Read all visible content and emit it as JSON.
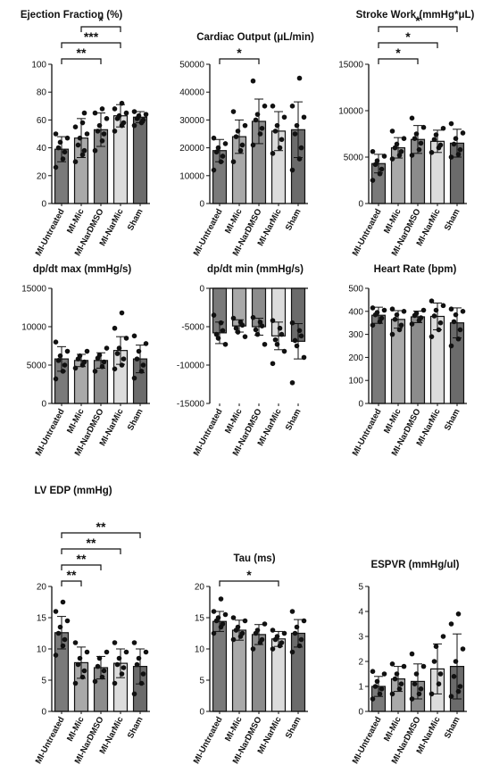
{
  "colors": {
    "MI-Untreated": "#7a7a7a",
    "MI-Mic": "#a9a9a9",
    "MI-NarDMSO": "#8c8c8c",
    "MI-NarMic": "#dcdcdc",
    "Sham": "#6b6b6b",
    "axis": "#111111",
    "point": "#111111"
  },
  "chart_data": [
    {
      "type": "bar",
      "title": "Ejection Fraction (%)",
      "categories": [
        "MI-Untreated",
        "MI-Mic",
        "MI-NarDMSO",
        "MI-NarMic",
        "Sham"
      ],
      "values": [
        39,
        47,
        53,
        63,
        62
      ],
      "errors": [
        9,
        14,
        12,
        8,
        4
      ],
      "points": [
        [
          26,
          32,
          37,
          40,
          44,
          47,
          50
        ],
        [
          30,
          35,
          38,
          42,
          47,
          50,
          55,
          58,
          65
        ],
        [
          38,
          45,
          50,
          52,
          56,
          61,
          65,
          68
        ],
        [
          52,
          56,
          58,
          61,
          63,
          65,
          68,
          72
        ],
        [
          56,
          58,
          60,
          61,
          63,
          64,
          66
        ]
      ],
      "ylim": [
        0,
        100
      ],
      "yticks": [
        0,
        20,
        40,
        60,
        80,
        100
      ],
      "ytick_labels": [
        "0",
        "20",
        "40",
        "60",
        "80",
        "100"
      ],
      "significance": [
        {
          "from": 0,
          "to": 2,
          "label": "**"
        },
        {
          "from": 0,
          "to": 3,
          "label": "***"
        },
        {
          "from": 1,
          "to": 3,
          "label": "*"
        }
      ]
    },
    {
      "type": "bar",
      "title": "Cardiac Output (μL/min)",
      "categories": [
        "MI-Untreated",
        "MI-Mic",
        "MI-NarDMSO",
        "MI-NarMic",
        "Sham"
      ],
      "values": [
        19000,
        24000,
        29500,
        26000,
        26500
      ],
      "errors": [
        4000,
        6000,
        8000,
        7000,
        10000
      ],
      "points": [
        [
          12000,
          15000,
          17000,
          18500,
          20000,
          21500,
          23500
        ],
        [
          15000,
          19000,
          21000,
          24000,
          26000,
          28000,
          33000
        ],
        [
          21000,
          25000,
          27000,
          30000,
          32000,
          35000,
          44000
        ],
        [
          18000,
          20000,
          23000,
          26000,
          28000,
          31000,
          35000
        ],
        [
          12000,
          16000,
          20000,
          25000,
          28000,
          31000,
          35000,
          45000
        ]
      ],
      "ylim": [
        0,
        50000
      ],
      "yticks": [
        0,
        10000,
        20000,
        30000,
        40000,
        50000
      ],
      "ytick_labels": [
        "0",
        "10000",
        "20000",
        "30000",
        "40000",
        "50000"
      ],
      "significance": [
        {
          "from": 0,
          "to": 2,
          "label": "*"
        }
      ]
    },
    {
      "type": "bar",
      "title": "Stroke Work (mmHg*μL)",
      "categories": [
        "MI-Untreated",
        "MI-Mic",
        "MI-NarDMSO",
        "MI-NarMic",
        "Sham"
      ],
      "values": [
        4300,
        6000,
        6900,
        6700,
        6500
      ],
      "errors": [
        1000,
        1100,
        1500,
        1200,
        1500
      ],
      "points": [
        [
          2500,
          3200,
          3700,
          4200,
          4600,
          5100,
          5600
        ],
        [
          4800,
          5200,
          5600,
          6000,
          6400,
          7000,
          7800
        ],
        [
          5200,
          5800,
          6500,
          7000,
          7500,
          8200,
          9200
        ],
        [
          5500,
          6000,
          6300,
          6900,
          7400,
          8100
        ],
        [
          5000,
          5300,
          5800,
          6400,
          7000,
          7600,
          8600
        ]
      ],
      "ylim": [
        0,
        15000
      ],
      "yticks": [
        0,
        5000,
        10000,
        15000
      ],
      "ytick_labels": [
        "0",
        "5000",
        "10000",
        "15000"
      ],
      "significance": [
        {
          "from": 0,
          "to": 2,
          "label": "*"
        },
        {
          "from": 0,
          "to": 3,
          "label": "*"
        },
        {
          "from": 0,
          "to": 4,
          "label": "*"
        }
      ]
    },
    {
      "type": "bar",
      "title": "dp/dt max (mmHg/s)",
      "categories": [
        "MI-Untreated",
        "MI-Mic",
        "MI-NarDMSO",
        "MI-NarMic",
        "Sham"
      ],
      "values": [
        5800,
        5600,
        5600,
        6900,
        5800
      ],
      "errors": [
        1600,
        800,
        1000,
        1800,
        1800
      ],
      "points": [
        [
          3200,
          4200,
          5000,
          5600,
          6200,
          6800,
          8000
        ],
        [
          4600,
          5000,
          5400,
          5800,
          6200,
          6800
        ],
        [
          4200,
          4800,
          5400,
          5900,
          6300,
          7200
        ],
        [
          4500,
          5000,
          5800,
          6500,
          7200,
          8500,
          9800,
          11800
        ],
        [
          3300,
          4200,
          5000,
          5800,
          6800,
          7800,
          8800
        ]
      ],
      "ylim": [
        0,
        15000
      ],
      "yticks": [
        0,
        5000,
        10000,
        15000
      ],
      "ytick_labels": [
        "0",
        "5000",
        "10000",
        "15000"
      ],
      "significance": []
    },
    {
      "type": "bar",
      "title": "dp/dt min (mmHg/s)",
      "categories": [
        "MI-Untreated",
        "MI-Mic",
        "MI-NarDMSO",
        "MI-NarMic",
        "Sham"
      ],
      "values": [
        -5800,
        -4900,
        -5000,
        -6200,
        -6900
      ],
      "errors": [
        1400,
        800,
        1100,
        1800,
        2300
      ],
      "points": [
        [
          -3500,
          -4500,
          -5500,
          -6000,
          -6500,
          -7300
        ],
        [
          -3900,
          -4400,
          -4800,
          -5200,
          -5700,
          -6300
        ],
        [
          -3800,
          -4400,
          -4900,
          -5400,
          -6000,
          -7300
        ],
        [
          -4200,
          -5200,
          -6000,
          -6700,
          -7300,
          -8200,
          -9800
        ],
        [
          -4500,
          -5500,
          -6200,
          -6800,
          -7500,
          -9000,
          -12300
        ]
      ],
      "ylim": [
        -15000,
        0
      ],
      "yticks": [
        -15000,
        -10000,
        -5000,
        0
      ],
      "ytick_labels": [
        "-15000",
        "-10000",
        "-5000",
        "0"
      ],
      "significance": []
    },
    {
      "type": "bar",
      "title": "Heart Rate (bpm)",
      "categories": [
        "MI-Untreated",
        "MI-Mic",
        "MI-NarDMSO",
        "MI-NarMic",
        "Sham"
      ],
      "values": [
        383,
        365,
        376,
        378,
        350
      ],
      "errors": [
        35,
        38,
        25,
        58,
        65
      ],
      "points": [
        [
          340,
          355,
          370,
          385,
          395,
          405,
          415
        ],
        [
          300,
          320,
          340,
          365,
          385,
          400,
          410
        ],
        [
          345,
          360,
          372,
          382,
          392,
          405
        ],
        [
          290,
          320,
          350,
          380,
          405,
          425,
          445
        ],
        [
          250,
          280,
          320,
          355,
          385,
          400,
          410
        ]
      ],
      "ylim": [
        0,
        500
      ],
      "yticks": [
        0,
        100,
        200,
        300,
        400,
        500
      ],
      "ytick_labels": [
        "0",
        "100",
        "200",
        "300",
        "400",
        "500"
      ],
      "significance": []
    },
    {
      "type": "bar",
      "title": "LV EDP (mmHg)",
      "categories": [
        "MI-Untreated",
        "MI-Mic",
        "MI-NarDMSO",
        "MI-NarMic",
        "Sham"
      ],
      "values": [
        12.6,
        7.8,
        7.0,
        7.7,
        7.2
      ],
      "errors": [
        2.6,
        2.5,
        1.8,
        2.3,
        2.8
      ],
      "points": [
        [
          9,
          10.5,
          11.5,
          12.5,
          13.5,
          14.5,
          16,
          17.5
        ],
        [
          4.5,
          5.5,
          6.5,
          7.5,
          8.5,
          9.5,
          11
        ],
        [
          4.8,
          5.5,
          6.5,
          7.2,
          8.5,
          9.5
        ],
        [
          4.5,
          6,
          7,
          7.5,
          8.5,
          9.5,
          11
        ],
        [
          2.8,
          4.5,
          6,
          7.5,
          8.5,
          9.5,
          11
        ]
      ],
      "ylim": [
        0,
        20
      ],
      "yticks": [
        0,
        5,
        10,
        15,
        20
      ],
      "ytick_labels": [
        "0",
        "5",
        "10",
        "15",
        "20"
      ],
      "significance": [
        {
          "from": 0,
          "to": 1,
          "label": "**"
        },
        {
          "from": 0,
          "to": 2,
          "label": "**"
        },
        {
          "from": 0,
          "to": 3,
          "label": "**"
        },
        {
          "from": 0,
          "to": 4,
          "label": "**"
        }
      ]
    },
    {
      "type": "bar",
      "title": "Tau (ms)",
      "categories": [
        "MI-Untreated",
        "MI-Mic",
        "MI-NarDMSO",
        "MI-NarMic",
        "Sham"
      ],
      "values": [
        14.4,
        13.0,
        12.3,
        11.6,
        12.5
      ],
      "errors": [
        1.6,
        1.6,
        1.6,
        1.2,
        2.2
      ],
      "points": [
        [
          12.5,
          13.5,
          14,
          14.5,
          15,
          15.5,
          16,
          18
        ],
        [
          11.5,
          12,
          12.5,
          13,
          13.5,
          14.5,
          15
        ],
        [
          10,
          11,
          11.5,
          12.5,
          13,
          14
        ],
        [
          10,
          10.5,
          11,
          11.5,
          12,
          12.5,
          13
        ],
        [
          9.5,
          10.5,
          11.5,
          12.5,
          13.5,
          14.5,
          16
        ]
      ],
      "ylim": [
        0,
        20
      ],
      "yticks": [
        0,
        5,
        10,
        15,
        20
      ],
      "ytick_labels": [
        "0",
        "5",
        "10",
        "15",
        "20"
      ],
      "significance": [
        {
          "from": 0,
          "to": 3,
          "label": "*"
        }
      ]
    },
    {
      "type": "bar",
      "title": "ESPVR (mmHg/ul)",
      "categories": [
        "MI-Untreated",
        "MI-Mic",
        "MI-NarDMSO",
        "MI-NarMic",
        "Sham"
      ],
      "values": [
        1.0,
        1.3,
        1.2,
        1.7,
        1.8
      ],
      "errors": [
        0.4,
        0.5,
        0.7,
        1.0,
        1.3
      ],
      "points": [
        [
          0.5,
          0.7,
          0.9,
          1.0,
          1.2,
          1.5,
          1.6
        ],
        [
          0.7,
          0.9,
          1.1,
          1.3,
          1.5,
          1.8,
          1.9
        ],
        [
          0.5,
          0.7,
          0.9,
          1.1,
          1.5,
          1.8,
          2.3
        ],
        [
          0.7,
          1.1,
          1.5,
          2.0,
          2.6,
          3.0
        ],
        [
          0.6,
          0.8,
          1.0,
          1.4,
          2.0,
          2.5,
          3.5,
          3.9
        ]
      ],
      "ylim": [
        0,
        5
      ],
      "yticks": [
        0,
        1,
        2,
        3,
        4,
        5
      ],
      "ytick_labels": [
        "0",
        "1",
        "2",
        "3",
        "4",
        "5"
      ],
      "significance": []
    }
  ]
}
